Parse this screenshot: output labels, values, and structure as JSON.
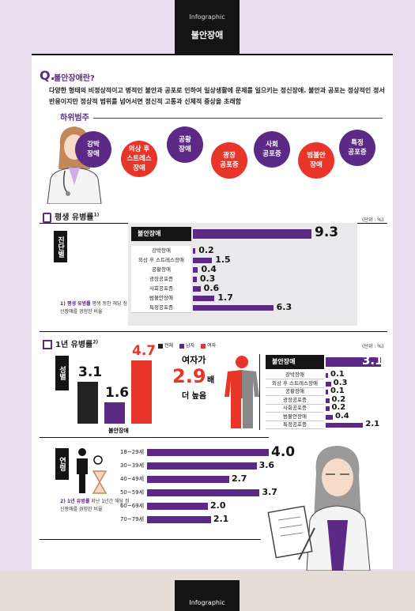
{
  "header": {
    "small": "Infographic",
    "title": "불안장애"
  },
  "footer": {
    "small": "Infographic"
  },
  "intro": {
    "q": "Q.",
    "question": "불안장애란?",
    "desc": "다양한 형태의 비정상적이고 병적인 불안과 공포로 인하여 일상생활에 문제를 일으키는 정신장애. 불안과 공포는 정상적인 정서 반응이지만 정상적 범위를 넘어서면 정신적 고통과 신체적 증상을 초래함",
    "subcat_title": "하위범주",
    "subcats": [
      {
        "label": "강박\n장애",
        "color": "#5c2a86"
      },
      {
        "label": "외상 후\n스트레스\n장애",
        "color": "#e8352a"
      },
      {
        "label": "공황\n장애",
        "color": "#5c2a86"
      },
      {
        "label": "광장\n공포증",
        "color": "#e8352a"
      },
      {
        "label": "사회\n공포증",
        "color": "#5c2a86"
      },
      {
        "label": "범불안\n장애",
        "color": "#e8352a"
      },
      {
        "label": "특정\n공포증",
        "color": "#5c2a86"
      }
    ]
  },
  "lifetime": {
    "title": "평생 유병률",
    "sup": "1)",
    "unit": "(단위 : %)",
    "side_label": "진단별",
    "note_title": "1) 평생 유병률",
    "note_text": "평생 동안 해당 정신장애를 경험한 비율"
  },
  "oneyear": {
    "title": "1년 유병률",
    "sup": "2)",
    "unit": "(단위 : %)",
    "legend": [
      {
        "label": "전체",
        "color": "#222222"
      },
      {
        "label": "남자",
        "color": "#5c2a86"
      },
      {
        "label": "여자",
        "color": "#e8352a"
      }
    ],
    "sex_label": "성별",
    "sex_caption": "불안장애",
    "ratio_text1": "여자가",
    "ratio_value": "2.9",
    "ratio_unit": "배",
    "ratio_text2": "더 높음",
    "age_label": "연령",
    "note_title": "2) 1년 유병률",
    "note_text": "지난 1년간 해당 정신장애를 경험한 비율"
  },
  "chart_data": [
    {
      "type": "bar",
      "title": "평생 유병률",
      "categories": [
        "불안장애",
        "강박장애",
        "외상 후 스트레스장애",
        "공황장애",
        "광장공포증",
        "사회공포증",
        "범불안장애",
        "특정공포증"
      ],
      "values": [
        9.3,
        0.2,
        1.5,
        0.4,
        0.3,
        0.6,
        1.7,
        6.3
      ],
      "value_labels": [
        "9.3",
        "0.2",
        "1.5",
        "0.4",
        "0.3",
        "0.6",
        "1.7",
        "6.3"
      ],
      "unit": "%"
    },
    {
      "type": "bar",
      "title": "1년 유병률 성별",
      "categories": [
        "전체",
        "남자",
        "여자"
      ],
      "values": [
        3.1,
        1.6,
        4.7
      ],
      "value_labels": [
        "3.1",
        "1.6",
        "4.7"
      ],
      "colors": [
        "#222222",
        "#5c2a86",
        "#e8352a"
      ]
    },
    {
      "type": "bar",
      "title": "1년 유병률 진단별",
      "categories": [
        "불안장애",
        "강박장애",
        "외상 후 스트레스장애",
        "공황장애",
        "광장공포증",
        "사회공포증",
        "범불안장애",
        "특정공포증"
      ],
      "values": [
        3.1,
        0.1,
        0.3,
        0.1,
        0.2,
        0.2,
        0.4,
        2.1
      ],
      "value_labels": [
        "3.1",
        "0.1",
        "0.3",
        "0.1",
        "0.2",
        "0.2",
        "0.4",
        "2.1"
      ]
    },
    {
      "type": "bar",
      "title": "1년 유병률 연령별",
      "categories": [
        "18~29세",
        "30~39세",
        "40~49세",
        "50~59세",
        "60~69세",
        "70~79세"
      ],
      "values": [
        4.0,
        3.6,
        2.7,
        3.7,
        2.0,
        2.1
      ],
      "value_labels": [
        "4.0",
        "3.6",
        "2.7",
        "3.7",
        "2.0",
        "2.1"
      ]
    }
  ]
}
